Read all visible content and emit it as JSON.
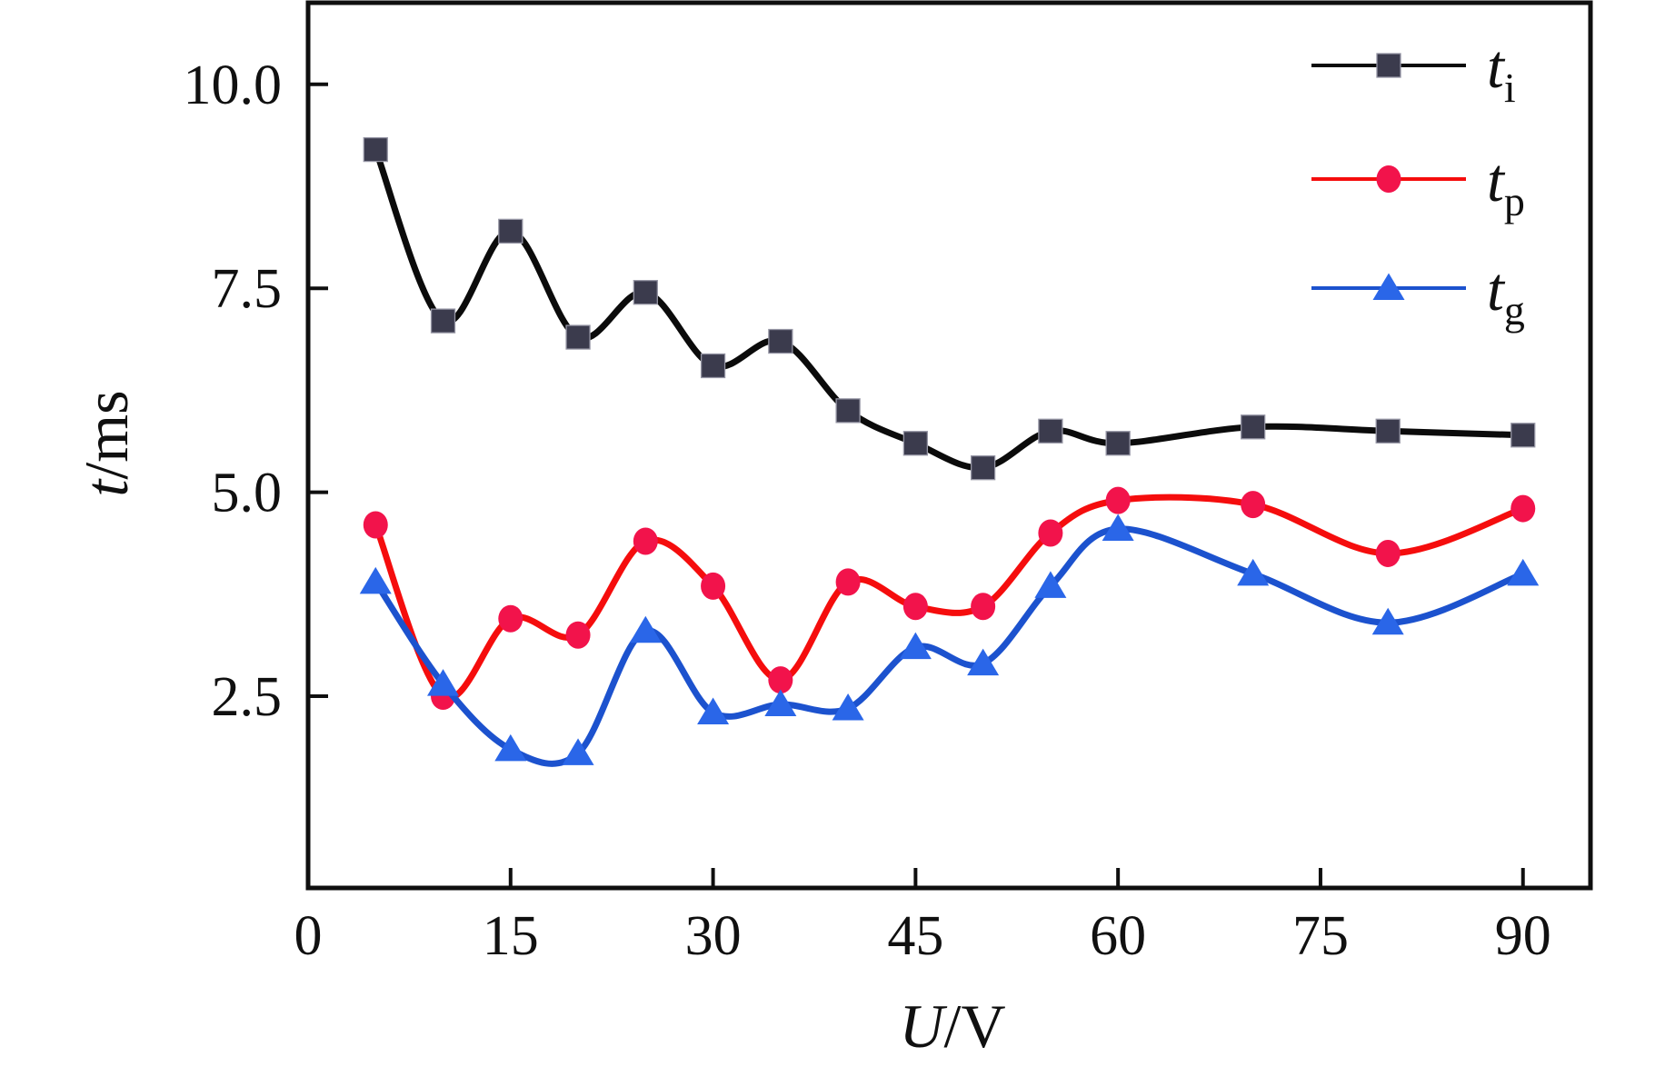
{
  "page": {
    "background": "#ffffff"
  },
  "chart_data": {
    "type": "line",
    "title": "",
    "xlabel": {
      "italic": "U",
      "rest": "/V"
    },
    "ylabel": {
      "italic": "t",
      "rest": "/ms"
    },
    "x": [
      5,
      10,
      15,
      20,
      25,
      30,
      35,
      40,
      45,
      50,
      55,
      60,
      70,
      80,
      90
    ],
    "xlim": [
      0,
      95
    ],
    "ylim": [
      0.15,
      11.0
    ],
    "grid": false,
    "legend_position": "top-right",
    "xticks": [
      {
        "value": 0,
        "label": "0",
        "mark": false
      },
      {
        "value": 15,
        "label": "15",
        "mark": true
      },
      {
        "value": 30,
        "label": "30",
        "mark": true
      },
      {
        "value": 45,
        "label": "45",
        "mark": true
      },
      {
        "value": 60,
        "label": "60",
        "mark": true
      },
      {
        "value": 75,
        "label": "75",
        "mark": true
      },
      {
        "value": 90,
        "label": "90",
        "mark": true
      }
    ],
    "yticks": [
      {
        "value": 2.5,
        "label": "2.5"
      },
      {
        "value": 5.0,
        "label": "5.0"
      },
      {
        "value": 7.5,
        "label": "7.5"
      },
      {
        "value": 10.0,
        "label": "10.0"
      }
    ],
    "series": [
      {
        "id": "t_i",
        "legend": {
          "main": "t",
          "sub": "i"
        },
        "line_color": "#0B0B0B",
        "marker": "square",
        "marker_color": "#3B3B4D",
        "marker_edge": "#9595A4",
        "values": [
          9.2,
          7.1,
          8.2,
          6.9,
          7.45,
          6.55,
          6.85,
          6.0,
          5.6,
          5.3,
          5.75,
          5.6,
          5.8,
          5.75,
          5.7
        ]
      },
      {
        "id": "t_p",
        "legend": {
          "main": "t",
          "sub": "p"
        },
        "line_color": "#F50D0D",
        "marker": "circle",
        "marker_color": "#F2134B",
        "marker_edge": "none",
        "values": [
          4.6,
          2.5,
          3.45,
          3.25,
          4.4,
          3.85,
          2.7,
          3.9,
          3.6,
          3.6,
          4.5,
          4.9,
          4.85,
          4.25,
          4.8
        ]
      },
      {
        "id": "t_g",
        "legend": {
          "main": "t",
          "sub": "g"
        },
        "line_color": "#1C52CE",
        "marker": "triangle",
        "marker_color": "#2A66E8",
        "marker_edge": "none",
        "values": [
          3.9,
          2.65,
          1.85,
          1.8,
          3.3,
          2.3,
          2.4,
          2.35,
          3.1,
          2.9,
          3.85,
          4.55,
          4.0,
          3.4,
          4.0
        ]
      }
    ]
  }
}
